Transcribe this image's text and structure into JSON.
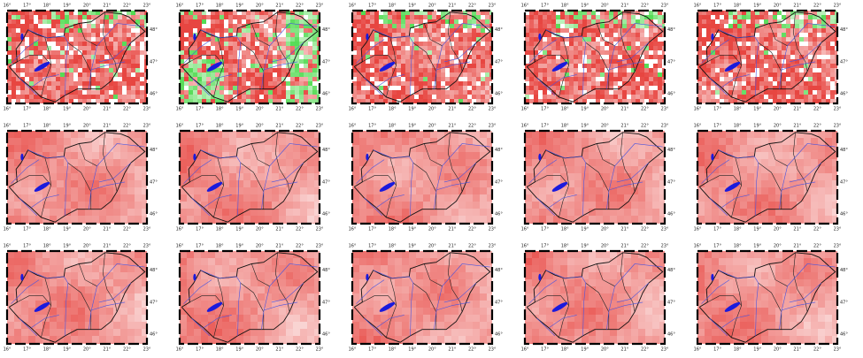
{
  "maps": {
    "x_labels": [
      "16°",
      "17°",
      "18°",
      "19°",
      "20°",
      "21°",
      "22°",
      "23°"
    ],
    "y_labels": [
      "48°",
      "47°",
      "46°"
    ]
  }
}
